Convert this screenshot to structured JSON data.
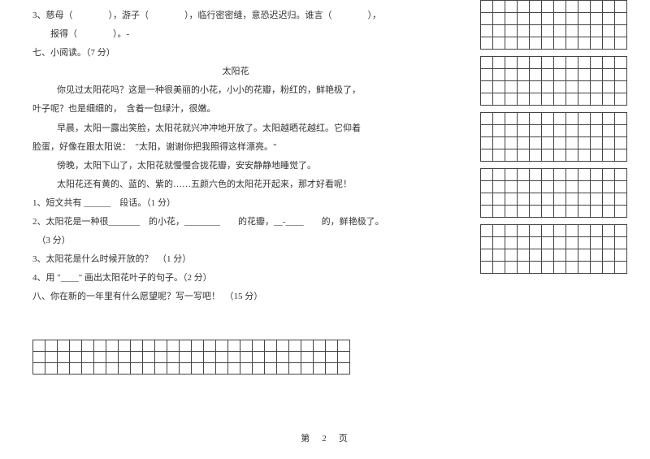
{
  "q3_line1": "3、慈母（　　　　），游子（　　　　），临行密密缝，意恐迟迟归。谁言（　　　　），",
  "q3_line2": "　　报得（　　　　）。-",
  "sec7": "七、小阅读。（7 分）",
  "read_title": "太阳花",
  "p1": "你见过太阳花吗？这是一种很美丽的小花，小小的花瓣，粉红的，鲜艳极了，",
  "p2": "叶子呢？也是细细的，　含着一包绿汁，很嫩。",
  "p3": "早晨，太阳一露出笑脸，太阳花就兴冲冲地开放了。太阳越晒花越红。它仰着",
  "p4": "脸蛋，好像在跟太阳说：　\"太阳，谢谢你把我照得这样漂亮。\"",
  "p5": "傍晚，太阳下山了，太阳花就慢慢合拢花瓣，安安静静地睡觉了。",
  "p6": "太阳花还有黄的、蓝的、紫的……五颜六色的太阳花开起来，那才好看呢！",
  "q1": "1、短文共有 ______　段话。（1 分）",
  "q2": "2、太阳花是一种很_______　的小花，________　　的花瓣，__-____　　的，鲜艳极了。",
  "q2b": "　（3 分）",
  "qr3": "3、太阳花是什么时候开放的？　（1 分）",
  "qr4": "4、用 \"____\" 画出太阳花叶子的句子。（2 分）",
  "sec8": "八、你在新的一年里有什么愿望呢？写一写吧！　（15 分）",
  "footer": "第　2　页",
  "grid_right_blocks": 5,
  "grid_right_rows_per_block": 4,
  "grid_right_cols": 12,
  "grid_bottom_rows": 3,
  "grid_bottom_cols": 26,
  "colors": {
    "border": "#444444",
    "text": "#333333",
    "bg": "#ffffff"
  }
}
